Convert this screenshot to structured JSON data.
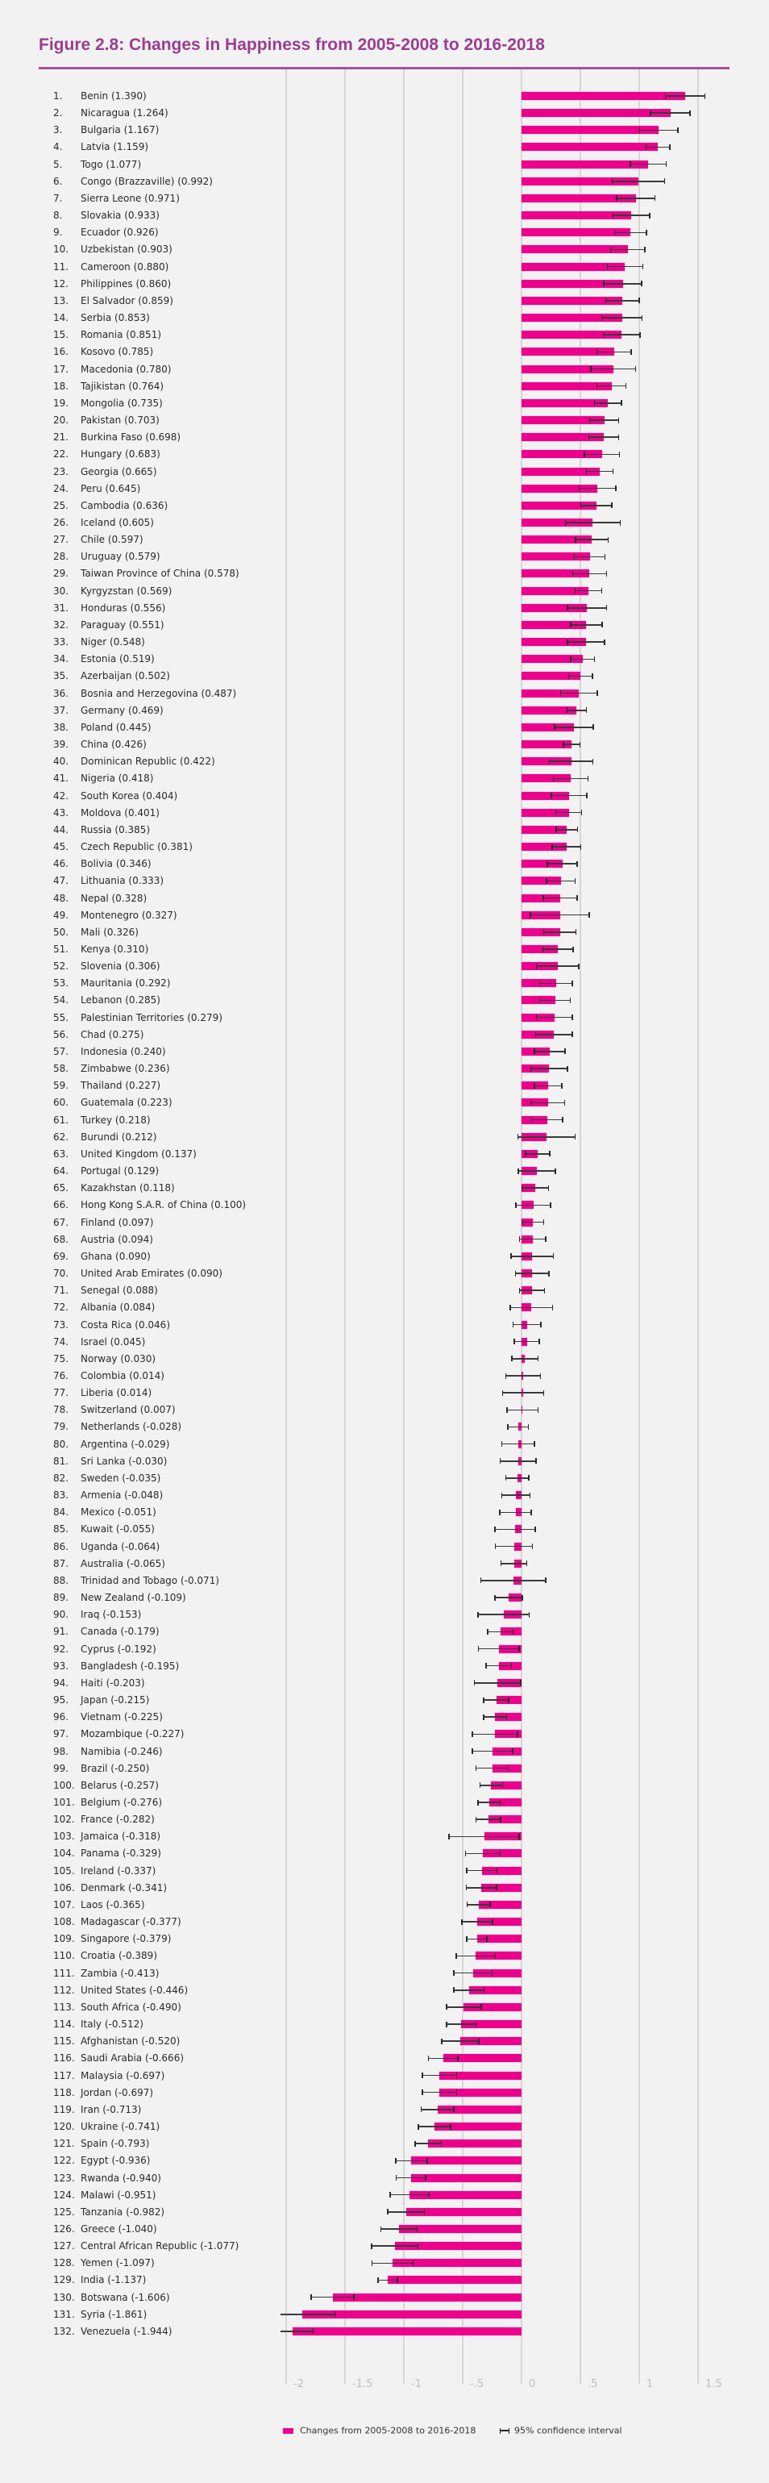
{
  "title": "Figure 2.8: Changes in Happiness from 2005-2008 to 2016-2018",
  "chart_data": {
    "type": "bar",
    "orientation": "horizontal",
    "title": "Figure 2.8: Changes in Happiness from 2005-2008 to 2016-2018",
    "xlabel": "",
    "ylabel": "",
    "xlim": [
      -2.05,
      1.75
    ],
    "grid": true,
    "x_ticks": [
      -2,
      -1.5,
      -1,
      -0.5,
      0,
      0.5,
      1,
      1.5
    ],
    "x_tick_labels": [
      "-2",
      "-1.5",
      "-1",
      "-.5",
      "0",
      ".5",
      "1",
      "1.5"
    ],
    "legend_position": "bottom",
    "legend": {
      "bar": "Changes from 2005-2008 to 2016-2018",
      "ci": "95% confidence interval"
    },
    "colors": {
      "bar": "#ec008c",
      "ci": "#2a2a2a",
      "title": "#9c3c91"
    },
    "rows": [
      {
        "rank": "1.",
        "label": "Benin (1.390)",
        "value": 1.39,
        "ci": 0.168
      },
      {
        "rank": "2.",
        "label": "Nicaragua (1.264)",
        "value": 1.264,
        "ci": 0.168
      },
      {
        "rank": "3.",
        "label": "Bulgaria (1.167)",
        "value": 1.167,
        "ci": 0.162
      },
      {
        "rank": "4.",
        "label": "Latvia (1.159)",
        "value": 1.159,
        "ci": 0.1
      },
      {
        "rank": "5.",
        "label": "Togo (1.077)",
        "value": 1.077,
        "ci": 0.153
      },
      {
        "rank": "6.",
        "label": "Congo (Brazzaville) (0.992)",
        "value": 0.992,
        "ci": 0.223
      },
      {
        "rank": "7.",
        "label": "Sierra Leone (0.971)",
        "value": 0.971,
        "ci": 0.164
      },
      {
        "rank": "8.",
        "label": "Slovakia (0.933)",
        "value": 0.933,
        "ci": 0.155
      },
      {
        "rank": "9.",
        "label": "Ecuador (0.926)",
        "value": 0.926,
        "ci": 0.136
      },
      {
        "rank": "10.",
        "label": "Uzbekistan (0.903)",
        "value": 0.903,
        "ci": 0.145
      },
      {
        "rank": "11.",
        "label": "Cameroon (0.880)",
        "value": 0.88,
        "ci": 0.152
      },
      {
        "rank": "12.",
        "label": "Philippines (0.860)",
        "value": 0.86,
        "ci": 0.162
      },
      {
        "rank": "13.",
        "label": "El Salvador (0.859)",
        "value": 0.859,
        "ci": 0.142
      },
      {
        "rank": "14.",
        "label": "Serbia (0.853)",
        "value": 0.853,
        "ci": 0.171
      },
      {
        "rank": "15.",
        "label": "Romania (0.851)",
        "value": 0.851,
        "ci": 0.155
      },
      {
        "rank": "16.",
        "label": "Kosovo (0.785)",
        "value": 0.785,
        "ci": 0.145
      },
      {
        "rank": "17.",
        "label": "Macedonia (0.780)",
        "value": 0.78,
        "ci": 0.19
      },
      {
        "rank": "18.",
        "label": "Tajikistan (0.764)",
        "value": 0.764,
        "ci": 0.124
      },
      {
        "rank": "19.",
        "label": "Mongolia (0.735)",
        "value": 0.735,
        "ci": 0.115
      },
      {
        "rank": "20.",
        "label": "Pakistan (0.703)",
        "value": 0.703,
        "ci": 0.123
      },
      {
        "rank": "21.",
        "label": "Burkina Faso (0.698)",
        "value": 0.698,
        "ci": 0.126
      },
      {
        "rank": "22.",
        "label": "Hungary (0.683)",
        "value": 0.683,
        "ci": 0.15
      },
      {
        "rank": "23.",
        "label": "Georgia (0.665)",
        "value": 0.665,
        "ci": 0.113
      },
      {
        "rank": "24.",
        "label": "Peru (0.645)",
        "value": 0.645,
        "ci": 0.155
      },
      {
        "rank": "25.",
        "label": "Cambodia (0.636)",
        "value": 0.636,
        "ci": 0.131
      },
      {
        "rank": "26.",
        "label": "Iceland (0.605)",
        "value": 0.605,
        "ci": 0.233
      },
      {
        "rank": "27.",
        "label": "Chile (0.597)",
        "value": 0.597,
        "ci": 0.138
      },
      {
        "rank": "28.",
        "label": "Uruguay (0.579)",
        "value": 0.579,
        "ci": 0.129
      },
      {
        "rank": "29.",
        "label": "Taiwan Province of China (0.578)",
        "value": 0.578,
        "ci": 0.143
      },
      {
        "rank": "30.",
        "label": "Kyrgyzstan (0.569)",
        "value": 0.569,
        "ci": 0.112
      },
      {
        "rank": "31.",
        "label": "Honduras (0.556)",
        "value": 0.556,
        "ci": 0.166
      },
      {
        "rank": "32.",
        "label": "Paraguay (0.551)",
        "value": 0.551,
        "ci": 0.134
      },
      {
        "rank": "33.",
        "label": "Niger (0.548)",
        "value": 0.548,
        "ci": 0.156
      },
      {
        "rank": "34.",
        "label": "Estonia (0.519)",
        "value": 0.519,
        "ci": 0.1
      },
      {
        "rank": "35.",
        "label": "Azerbaijan (0.502)",
        "value": 0.502,
        "ci": 0.1
      },
      {
        "rank": "36.",
        "label": "Bosnia and Herzegovina (0.487)",
        "value": 0.487,
        "ci": 0.156
      },
      {
        "rank": "37.",
        "label": "Germany (0.469)",
        "value": 0.469,
        "ci": 0.083
      },
      {
        "rank": "38.",
        "label": "Poland (0.445)",
        "value": 0.445,
        "ci": 0.163
      },
      {
        "rank": "39.",
        "label": "China (0.426)",
        "value": 0.426,
        "ci": 0.071
      },
      {
        "rank": "40.",
        "label": "Dominican Republic (0.422)",
        "value": 0.422,
        "ci": 0.185
      },
      {
        "rank": "41.",
        "label": "Nigeria (0.418)",
        "value": 0.418,
        "ci": 0.148
      },
      {
        "rank": "42.",
        "label": "South Korea (0.404)",
        "value": 0.404,
        "ci": 0.151
      },
      {
        "rank": "43.",
        "label": "Moldova (0.401)",
        "value": 0.401,
        "ci": 0.11
      },
      {
        "rank": "44.",
        "label": "Russia (0.385)",
        "value": 0.385,
        "ci": 0.09
      },
      {
        "rank": "45.",
        "label": "Czech Republic (0.381)",
        "value": 0.381,
        "ci": 0.121
      },
      {
        "rank": "46.",
        "label": "Bolivia (0.346)",
        "value": 0.346,
        "ci": 0.127
      },
      {
        "rank": "47.",
        "label": "Lithuania (0.333)",
        "value": 0.333,
        "ci": 0.121
      },
      {
        "rank": "48.",
        "label": "Nepal (0.328)",
        "value": 0.328,
        "ci": 0.143
      },
      {
        "rank": "49.",
        "label": "Montenegro (0.327)",
        "value": 0.327,
        "ci": 0.25
      },
      {
        "rank": "50.",
        "label": "Mali (0.326)",
        "value": 0.326,
        "ci": 0.136
      },
      {
        "rank": "51.",
        "label": "Kenya (0.310)",
        "value": 0.31,
        "ci": 0.13
      },
      {
        "rank": "52.",
        "label": "Slovenia (0.306)",
        "value": 0.306,
        "ci": 0.179
      },
      {
        "rank": "53.",
        "label": "Mauritania (0.292)",
        "value": 0.292,
        "ci": 0.139
      },
      {
        "rank": "54.",
        "label": "Lebanon (0.285)",
        "value": 0.285,
        "ci": 0.131
      },
      {
        "rank": "55.",
        "label": "Palestinian Territories (0.279)",
        "value": 0.279,
        "ci": 0.151
      },
      {
        "rank": "56.",
        "label": "Chad (0.275)",
        "value": 0.275,
        "ci": 0.156
      },
      {
        "rank": "57.",
        "label": "Indonesia (0.240)",
        "value": 0.24,
        "ci": 0.129
      },
      {
        "rank": "58.",
        "label": "Zimbabwe (0.236)",
        "value": 0.236,
        "ci": 0.156
      },
      {
        "rank": "59.",
        "label": "Thailand (0.227)",
        "value": 0.227,
        "ci": 0.116
      },
      {
        "rank": "60.",
        "label": "Guatemala (0.223)",
        "value": 0.223,
        "ci": 0.143
      },
      {
        "rank": "61.",
        "label": "Turkey (0.218)",
        "value": 0.218,
        "ci": 0.131
      },
      {
        "rank": "62.",
        "label": "Burundi (0.212)",
        "value": 0.212,
        "ci": 0.244
      },
      {
        "rank": "63.",
        "label": "United Kingdom (0.137)",
        "value": 0.137,
        "ci": 0.102
      },
      {
        "rank": "64.",
        "label": "Portugal (0.129)",
        "value": 0.129,
        "ci": 0.158
      },
      {
        "rank": "65.",
        "label": "Kazakhstan (0.118)",
        "value": 0.118,
        "ci": 0.113
      },
      {
        "rank": "66.",
        "label": "Hong Kong S.A.R. of China (0.100)",
        "value": 0.1,
        "ci": 0.147
      },
      {
        "rank": "67.",
        "label": "Finland (0.097)",
        "value": 0.097,
        "ci": 0.092
      },
      {
        "rank": "68.",
        "label": "Austria (0.094)",
        "value": 0.094,
        "ci": 0.112
      },
      {
        "rank": "69.",
        "label": "Ghana (0.090)",
        "value": 0.09,
        "ci": 0.18
      },
      {
        "rank": "70.",
        "label": "United Arab Emirates (0.090)",
        "value": 0.09,
        "ci": 0.143
      },
      {
        "rank": "71.",
        "label": "Senegal (0.088)",
        "value": 0.088,
        "ci": 0.106
      },
      {
        "rank": "72.",
        "label": "Albania (0.084)",
        "value": 0.084,
        "ci": 0.18
      },
      {
        "rank": "73.",
        "label": "Costa Rica (0.046)",
        "value": 0.046,
        "ci": 0.119
      },
      {
        "rank": "74.",
        "label": "Israel (0.045)",
        "value": 0.045,
        "ci": 0.106
      },
      {
        "rank": "75.",
        "label": "Norway (0.030)",
        "value": 0.03,
        "ci": 0.112
      },
      {
        "rank": "76.",
        "label": "Colombia (0.014)",
        "value": 0.014,
        "ci": 0.146
      },
      {
        "rank": "77.",
        "label": "Liberia (0.014)",
        "value": 0.014,
        "ci": 0.174
      },
      {
        "rank": "78.",
        "label": "Switzerland (0.007)",
        "value": 0.007,
        "ci": 0.132
      },
      {
        "rank": "79.",
        "label": "Netherlands (-0.028)",
        "value": -0.028,
        "ci": 0.087
      },
      {
        "rank": "80.",
        "label": "Argentina (-0.029)",
        "value": -0.029,
        "ci": 0.138
      },
      {
        "rank": "81.",
        "label": "Sri Lanka (-0.030)",
        "value": -0.03,
        "ci": 0.152
      },
      {
        "rank": "82.",
        "label": "Sweden (-0.035)",
        "value": -0.035,
        "ci": 0.097
      },
      {
        "rank": "83.",
        "label": "Armenia (-0.048)",
        "value": -0.048,
        "ci": 0.121
      },
      {
        "rank": "84.",
        "label": "Mexico (-0.051)",
        "value": -0.051,
        "ci": 0.134
      },
      {
        "rank": "85.",
        "label": "Kuwait (-0.055)",
        "value": -0.055,
        "ci": 0.17
      },
      {
        "rank": "86.",
        "label": "Uganda (-0.064)",
        "value": -0.064,
        "ci": 0.158
      },
      {
        "rank": "87.",
        "label": "Australia (-0.065)",
        "value": -0.065,
        "ci": 0.111
      },
      {
        "rank": "88.",
        "label": "Trinidad and Tobago (-0.071)",
        "value": -0.071,
        "ci": 0.276
      },
      {
        "rank": "89.",
        "label": "New Zealand (-0.109)",
        "value": -0.109,
        "ci": 0.116
      },
      {
        "rank": "90.",
        "label": "Iraq (-0.153)",
        "value": -0.153,
        "ci": 0.218
      },
      {
        "rank": "91.",
        "label": "Canada (-0.179)",
        "value": -0.179,
        "ci": 0.107
      },
      {
        "rank": "92.",
        "label": "Cyprus (-0.192)",
        "value": -0.192,
        "ci": 0.173
      },
      {
        "rank": "93.",
        "label": "Bangladesh (-0.195)",
        "value": -0.195,
        "ci": 0.108
      },
      {
        "rank": "94.",
        "label": "Haiti (-0.203)",
        "value": -0.203,
        "ci": 0.197
      },
      {
        "rank": "95.",
        "label": "Japan (-0.215)",
        "value": -0.215,
        "ci": 0.106
      },
      {
        "rank": "96.",
        "label": "Vietnam (-0.225)",
        "value": -0.225,
        "ci": 0.097
      },
      {
        "rank": "97.",
        "label": "Mozambique (-0.227)",
        "value": -0.227,
        "ci": 0.192
      },
      {
        "rank": "98.",
        "label": "Namibia (-0.246)",
        "value": -0.246,
        "ci": 0.172
      },
      {
        "rank": "99.",
        "label": "Brazil (-0.250)",
        "value": -0.25,
        "ci": 0.138
      },
      {
        "rank": "100.",
        "label": "Belarus (-0.257)",
        "value": -0.257,
        "ci": 0.097
      },
      {
        "rank": "101.",
        "label": "Belgium (-0.276)",
        "value": -0.276,
        "ci": 0.094
      },
      {
        "rank": "102.",
        "label": "France (-0.282)",
        "value": -0.282,
        "ci": 0.105
      },
      {
        "rank": "103.",
        "label": "Jamaica (-0.318)",
        "value": -0.318,
        "ci": 0.299
      },
      {
        "rank": "104.",
        "label": "Panama (-0.329)",
        "value": -0.329,
        "ci": 0.146
      },
      {
        "rank": "105.",
        "label": "Ireland (-0.337)",
        "value": -0.337,
        "ci": 0.128
      },
      {
        "rank": "106.",
        "label": "Denmark (-0.341)",
        "value": -0.341,
        "ci": 0.129
      },
      {
        "rank": "107.",
        "label": "Laos (-0.365)",
        "value": -0.365,
        "ci": 0.099
      },
      {
        "rank": "108.",
        "label": "Madagascar (-0.377)",
        "value": -0.377,
        "ci": 0.129
      },
      {
        "rank": "109.",
        "label": "Singapore (-0.379)",
        "value": -0.379,
        "ci": 0.086
      },
      {
        "rank": "110.",
        "label": "Croatia (-0.389)",
        "value": -0.389,
        "ci": 0.167
      },
      {
        "rank": "111.",
        "label": "Zambia (-0.413)",
        "value": -0.413,
        "ci": 0.163
      },
      {
        "rank": "112.",
        "label": "United States (-0.446)",
        "value": -0.446,
        "ci": 0.129
      },
      {
        "rank": "113.",
        "label": "South Africa (-0.490)",
        "value": -0.49,
        "ci": 0.148
      },
      {
        "rank": "114.",
        "label": "Italy (-0.512)",
        "value": -0.512,
        "ci": 0.124
      },
      {
        "rank": "115.",
        "label": "Afghanistan (-0.520)",
        "value": -0.52,
        "ci": 0.158
      },
      {
        "rank": "116.",
        "label": "Saudi Arabia (-0.666)",
        "value": -0.666,
        "ci": 0.126
      },
      {
        "rank": "117.",
        "label": "Malaysia (-0.697)",
        "value": -0.697,
        "ci": 0.145
      },
      {
        "rank": "118.",
        "label": "Jordan (-0.697)",
        "value": -0.697,
        "ci": 0.145
      },
      {
        "rank": "119.",
        "label": "Iran (-0.713)",
        "value": -0.713,
        "ci": 0.139
      },
      {
        "rank": "120.",
        "label": "Ukraine (-0.741)",
        "value": -0.741,
        "ci": 0.137
      },
      {
        "rank": "121.",
        "label": "Spain (-0.793)",
        "value": -0.793,
        "ci": 0.11
      },
      {
        "rank": "122.",
        "label": "Egypt (-0.936)",
        "value": -0.936,
        "ci": 0.134
      },
      {
        "rank": "123.",
        "label": "Rwanda (-0.940)",
        "value": -0.94,
        "ci": 0.124
      },
      {
        "rank": "124.",
        "label": "Malawi (-0.951)",
        "value": -0.951,
        "ci": 0.167
      },
      {
        "rank": "125.",
        "label": "Tanzania (-0.982)",
        "value": -0.982,
        "ci": 0.156
      },
      {
        "rank": "126.",
        "label": "Greece (-1.040)",
        "value": -1.04,
        "ci": 0.154
      },
      {
        "rank": "127.",
        "label": "Central African Republic (-1.077)",
        "value": -1.077,
        "ci": 0.197
      },
      {
        "rank": "128.",
        "label": "Yemen (-1.097)",
        "value": -1.097,
        "ci": 0.175
      },
      {
        "rank": "129.",
        "label": "India (-1.137)",
        "value": -1.137,
        "ci": 0.083
      },
      {
        "rank": "130.",
        "label": "Botswana (-1.606)",
        "value": -1.606,
        "ci": 0.183
      },
      {
        "rank": "131.",
        "label": "Syria (-1.861)",
        "value": -1.861,
        "ci": 0.274
      },
      {
        "rank": "132.",
        "label": "Venezuela (-1.944)",
        "value": -1.944,
        "ci": 0.172
      }
    ]
  }
}
